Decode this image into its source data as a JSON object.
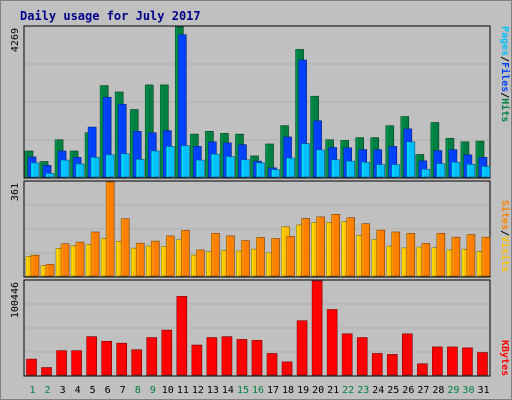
{
  "title": "Daily usage for July 2017",
  "colors": {
    "background": "#c0c0c0",
    "title": "#00008b",
    "pages": "#00c0ff",
    "files": "#0040ff",
    "hits": "#008040",
    "sites": "#ff8000",
    "visits": "#ffc000",
    "kbytes": "#ff0000",
    "weekend_day": "#008040",
    "weekday": "#000000"
  },
  "chart_data": [
    {
      "type": "bar",
      "name": "hits-panel",
      "ymax_label": "4269",
      "ylim": [
        0,
        4269
      ],
      "legend": [
        {
          "label": "Pages",
          "color": "#00c0ff"
        },
        {
          "label": "/",
          "color": "#000000"
        },
        {
          "label": "Files",
          "color": "#0040ff"
        },
        {
          "label": "/",
          "color": "#000000"
        },
        {
          "label": "Hits",
          "color": "#008040"
        }
      ],
      "series": [
        {
          "name": "Hits",
          "values": [
            740,
            440,
            1060,
            740,
            1260,
            2600,
            2420,
            1920,
            2620,
            2620,
            4269,
            1220,
            1300,
            1240,
            1220,
            600,
            940,
            1460,
            3630,
            2300,
            1060,
            1040,
            1120,
            1120,
            1460,
            1720,
            640,
            1550,
            1100,
            1000,
            1020
          ]
        },
        {
          "name": "Files",
          "values": [
            570,
            330,
            740,
            560,
            1420,
            2270,
            2070,
            1300,
            1260,
            1320,
            4050,
            870,
            1000,
            970,
            920,
            450,
            260,
            1140,
            3330,
            1600,
            840,
            830,
            780,
            780,
            870,
            1370,
            460,
            750,
            780,
            630,
            560
          ]
        },
        {
          "name": "Pages",
          "values": [
            400,
            100,
            480,
            370,
            560,
            630,
            660,
            500,
            740,
            870,
            890,
            480,
            650,
            580,
            490,
            400,
            210,
            540,
            950,
            770,
            490,
            450,
            420,
            350,
            350,
            1000,
            220,
            380,
            420,
            360,
            300
          ]
        }
      ]
    },
    {
      "type": "bar",
      "name": "visits-panel",
      "ymax_label": "361",
      "ylim": [
        0,
        361
      ],
      "legend": [
        {
          "label": "Sites",
          "color": "#ff8000"
        },
        {
          "label": "/",
          "color": "#000000"
        },
        {
          "label": "Visits",
          "color": "#ffc000"
        }
      ],
      "series": [
        {
          "name": "Sites",
          "values": [
            80,
            45,
            124,
            130,
            169,
            361,
            220,
            126,
            134,
            154,
            175,
            100,
            164,
            154,
            136,
            148,
            144,
            152,
            221,
            227,
            237,
            224,
            201,
            176,
            169,
            164,
            125,
            164,
            149,
            159,
            149
          ]
        },
        {
          "name": "Visits",
          "values": [
            75,
            40,
            106,
            116,
            121,
            144,
            133,
            107,
            115,
            113,
            139,
            80,
            93,
            98,
            96,
            103,
            89,
            189,
            196,
            205,
            206,
            209,
            156,
            140,
            115,
            108,
            111,
            109,
            100,
            103,
            94
          ]
        }
      ]
    },
    {
      "type": "bar",
      "name": "kbytes-panel",
      "ymax_label": "100446",
      "ylim": [
        0,
        100446
      ],
      "legend": [
        {
          "label": "KBytes",
          "color": "#ff0000"
        }
      ],
      "series": [
        {
          "name": "KBytes",
          "values": [
            17000,
            8000,
            26000,
            26000,
            41000,
            36000,
            34000,
            27000,
            40000,
            48000,
            84000,
            32000,
            40000,
            41000,
            38000,
            37000,
            23000,
            14000,
            58000,
            100446,
            70000,
            44000,
            40000,
            23000,
            22000,
            44000,
            12000,
            30000,
            30000,
            29000,
            24000
          ]
        }
      ]
    }
  ],
  "days": [
    "1",
    "2",
    "3",
    "4",
    "5",
    "6",
    "7",
    "8",
    "9",
    "10",
    "11",
    "12",
    "13",
    "14",
    "15",
    "16",
    "17",
    "18",
    "19",
    "20",
    "21",
    "22",
    "23",
    "24",
    "25",
    "26",
    "27",
    "28",
    "29",
    "30",
    "31"
  ],
  "weekend_days": [
    1,
    2,
    8,
    9,
    15,
    16,
    22,
    23,
    29,
    30
  ]
}
